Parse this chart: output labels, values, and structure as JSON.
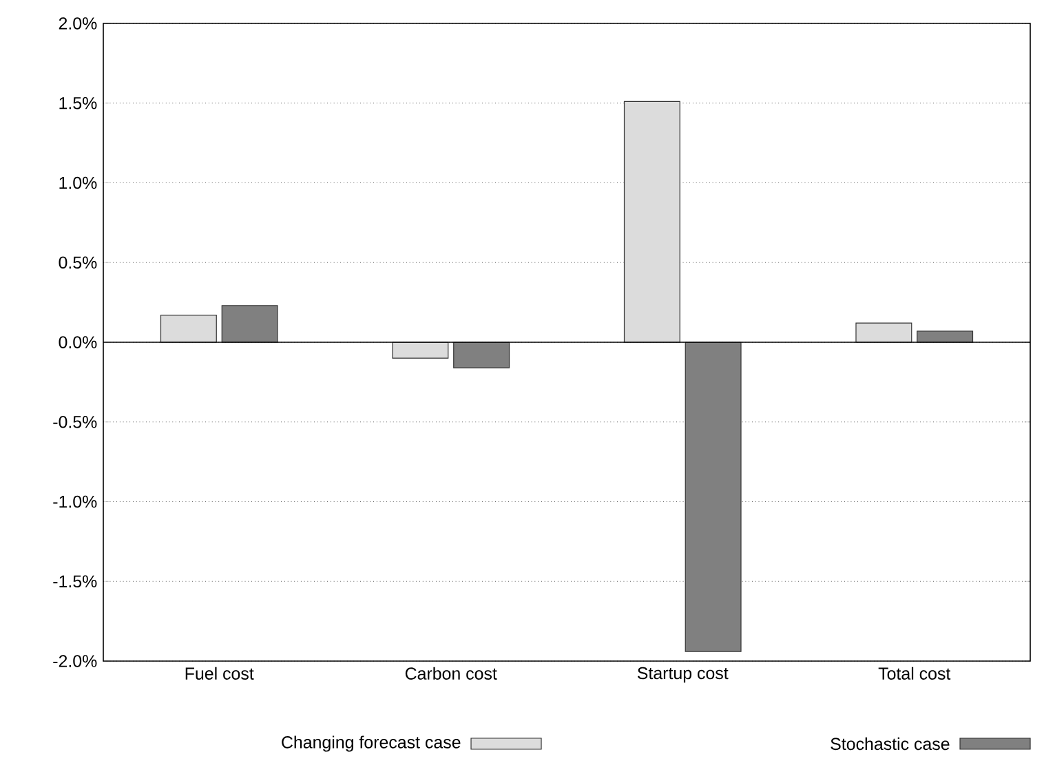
{
  "chart_data": {
    "type": "bar",
    "categories": [
      "Fuel cost",
      "Carbon cost",
      "Startup cost",
      "Total cost"
    ],
    "series": [
      {
        "name": "Changing forecast case",
        "color": "#dcdcdc",
        "values": [
          0.17,
          -0.1,
          1.51,
          0.12
        ]
      },
      {
        "name": "Stochastic case",
        "color": "#808080",
        "values": [
          0.23,
          -0.16,
          -1.94,
          0.07
        ]
      }
    ],
    "ylim": [
      -2.0,
      2.0
    ],
    "yticks": [
      {
        "value": -2.0,
        "label": "-2.0%"
      },
      {
        "value": -1.5,
        "label": "-1.5%"
      },
      {
        "value": -1.0,
        "label": "-1.0%"
      },
      {
        "value": -0.5,
        "label": "-0.5%"
      },
      {
        "value": 0.0,
        "label": "0.0%"
      },
      {
        "value": 0.5,
        "label": "0.5%"
      },
      {
        "value": 1.0,
        "label": "1.0%"
      },
      {
        "value": 1.5,
        "label": "1.5%"
      },
      {
        "value": 2.0,
        "label": "2.0%"
      }
    ],
    "grid": "y",
    "legend": "bottom"
  }
}
